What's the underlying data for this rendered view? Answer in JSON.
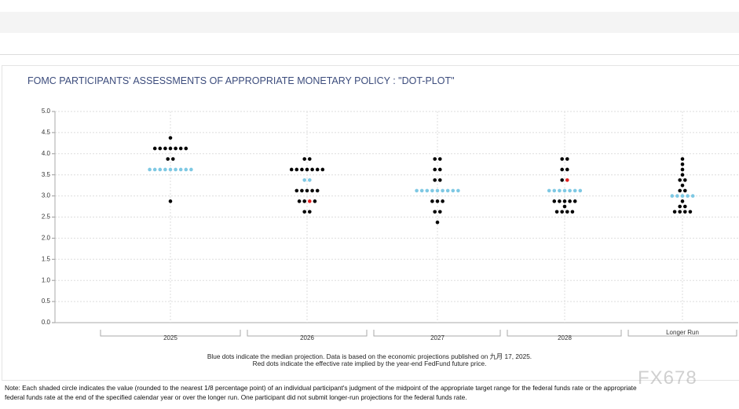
{
  "chart_data": {
    "type": "dot",
    "title": "FOMC PARTICIPANTS' ASSESSMENTS OF APPROPRIATE MONETARY POLICY : \"DOT-PLOT\"",
    "ylim": [
      0,
      5
    ],
    "yticks": [
      {
        "value": 0,
        "label": "0.0"
      },
      0.5,
      {
        "value": 1,
        "label": "1.0"
      },
      1.5,
      {
        "value": 2,
        "label": "2.0"
      },
      2.5,
      {
        "value": 3,
        "label": "3.0"
      },
      3.5,
      {
        "value": 4,
        "label": "4.0"
      },
      4.5,
      {
        "value": 5,
        "label": "5.0"
      }
    ],
    "grid": true,
    "dot_color": "#000000",
    "median_color": "#7ec8e3",
    "red_color": "#e02020",
    "columns": [
      {
        "label": "2025",
        "levels": [
          4.375,
          4.125,
          3.875,
          2.875
        ],
        "counts": [
          1,
          7,
          2,
          1
        ],
        "median": 3.625,
        "median_count": 9,
        "red": null
      },
      {
        "label": "2026",
        "levels": [
          3.875,
          3.625,
          3.125,
          2.875,
          2.625
        ],
        "counts": [
          2,
          7,
          5,
          3,
          2
        ],
        "median": 3.375,
        "median_count": 2,
        "red": 2.875
      },
      {
        "label": "2027",
        "levels": [
          3.875,
          3.625,
          3.375,
          2.875,
          2.625,
          2.375
        ],
        "counts": [
          2,
          2,
          2,
          3,
          2,
          1
        ],
        "median": 3.125,
        "median_count": 9,
        "red": null
      },
      {
        "label": "2028",
        "levels": [
          3.875,
          3.625,
          3.375,
          2.875,
          2.75,
          2.625
        ],
        "counts": [
          2,
          2,
          1,
          5,
          1,
          4
        ],
        "median": 3.125,
        "median_count": 7,
        "red": 3.375
      },
      {
        "label": "Longer Run",
        "levels": [
          3.875,
          3.75,
          3.625,
          3.5,
          3.375,
          3.25,
          3.125,
          2.875,
          2.75,
          2.625
        ],
        "counts": [
          1,
          1,
          1,
          1,
          2,
          1,
          2,
          1,
          2,
          4
        ],
        "median": 3.0,
        "median_count": 5,
        "red": null
      }
    ],
    "footnote_1": "Blue dots indicate the median projection. Data is based on the economic projections published on 九月 17, 2025.",
    "footnote_2": "Red dots indicate the effective rate implied by the year-end FedFund future price.",
    "note_1": "Note: Each shaded circle indicates the value (rounded to the nearest 1/8 percentage point) of an individual participant's judgment of the midpoint of the appropriate target range for the federal funds rate or the appropriate",
    "note_2": "federal funds rate at the end of the specified calendar year or over the longer run. One participant did not submit longer-run projections for the federal funds rate.",
    "watermark": "FX678"
  }
}
